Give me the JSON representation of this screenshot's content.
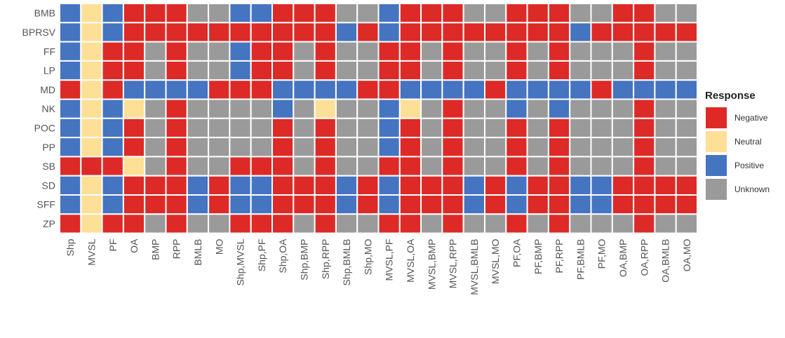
{
  "chart_data": {
    "type": "heatmap",
    "title": "",
    "xlabel": "",
    "ylabel": "",
    "rows": [
      "BMB",
      "BPRSV",
      "FF",
      "LP",
      "MD",
      "NK",
      "POC",
      "PP",
      "SB",
      "SD",
      "SFF",
      "ZP"
    ],
    "columns": [
      "Shp",
      "MVSL",
      "PF",
      "OA",
      "BMP",
      "RPP",
      "BMLB",
      "MO",
      "Shp,MVSL",
      "Shp,PF",
      "Shp,OA",
      "Shp,BMP",
      "Shp,RPP",
      "Shp,BMLB",
      "Shp,MO",
      "MVSL,PF",
      "MVSL,OA",
      "MVSL,BMP",
      "MVSL,RPP",
      "MVSL,BMLB",
      "MVSL,MO",
      "PF,OA",
      "PF,BMP",
      "PF,RPP",
      "PF,BMLB",
      "PF,MO",
      "OA,BMP",
      "OA,RPP",
      "OA,BMLB",
      "OA,MO"
    ],
    "values": [
      [
        "Positive",
        "Neutral",
        "Positive",
        "Negative",
        "Negative",
        "Negative",
        "Unknown",
        "Unknown",
        "Positive",
        "Positive",
        "Negative",
        "Negative",
        "Negative",
        "Unknown",
        "Unknown",
        "Positive",
        "Negative",
        "Negative",
        "Negative",
        "Unknown",
        "Unknown",
        "Negative",
        "Negative",
        "Negative",
        "Unknown",
        "Unknown",
        "Negative",
        "Negative",
        "Unknown",
        "Unknown"
      ],
      [
        "Positive",
        "Neutral",
        "Positive",
        "Negative",
        "Negative",
        "Negative",
        "Negative",
        "Negative",
        "Negative",
        "Negative",
        "Negative",
        "Negative",
        "Negative",
        "Positive",
        "Negative",
        "Positive",
        "Negative",
        "Negative",
        "Negative",
        "Negative",
        "Negative",
        "Negative",
        "Negative",
        "Negative",
        "Positive",
        "Negative",
        "Negative",
        "Negative",
        "Negative",
        "Negative"
      ],
      [
        "Positive",
        "Neutral",
        "Negative",
        "Negative",
        "Unknown",
        "Negative",
        "Unknown",
        "Unknown",
        "Positive",
        "Negative",
        "Negative",
        "Unknown",
        "Negative",
        "Unknown",
        "Unknown",
        "Negative",
        "Negative",
        "Unknown",
        "Negative",
        "Unknown",
        "Unknown",
        "Negative",
        "Unknown",
        "Negative",
        "Unknown",
        "Unknown",
        "Unknown",
        "Negative",
        "Unknown",
        "Unknown"
      ],
      [
        "Positive",
        "Neutral",
        "Negative",
        "Negative",
        "Unknown",
        "Negative",
        "Unknown",
        "Unknown",
        "Positive",
        "Negative",
        "Negative",
        "Unknown",
        "Negative",
        "Unknown",
        "Unknown",
        "Negative",
        "Negative",
        "Unknown",
        "Negative",
        "Unknown",
        "Unknown",
        "Negative",
        "Unknown",
        "Negative",
        "Unknown",
        "Unknown",
        "Unknown",
        "Negative",
        "Unknown",
        "Unknown"
      ],
      [
        "Negative",
        "Neutral",
        "Negative",
        "Positive",
        "Positive",
        "Positive",
        "Positive",
        "Negative",
        "Negative",
        "Negative",
        "Positive",
        "Positive",
        "Positive",
        "Positive",
        "Negative",
        "Negative",
        "Positive",
        "Positive",
        "Positive",
        "Positive",
        "Negative",
        "Positive",
        "Positive",
        "Positive",
        "Positive",
        "Negative",
        "Positive",
        "Positive",
        "Positive",
        "Positive"
      ],
      [
        "Positive",
        "Neutral",
        "Positive",
        "Neutral",
        "Unknown",
        "Negative",
        "Unknown",
        "Unknown",
        "Unknown",
        "Unknown",
        "Positive",
        "Unknown",
        "Neutral",
        "Unknown",
        "Unknown",
        "Positive",
        "Neutral",
        "Unknown",
        "Negative",
        "Unknown",
        "Unknown",
        "Positive",
        "Unknown",
        "Positive",
        "Unknown",
        "Unknown",
        "Unknown",
        "Negative",
        "Unknown",
        "Unknown"
      ],
      [
        "Positive",
        "Neutral",
        "Positive",
        "Negative",
        "Unknown",
        "Negative",
        "Unknown",
        "Unknown",
        "Unknown",
        "Unknown",
        "Negative",
        "Unknown",
        "Negative",
        "Unknown",
        "Unknown",
        "Positive",
        "Negative",
        "Unknown",
        "Negative",
        "Unknown",
        "Unknown",
        "Negative",
        "Unknown",
        "Negative",
        "Unknown",
        "Unknown",
        "Unknown",
        "Negative",
        "Unknown",
        "Unknown"
      ],
      [
        "Positive",
        "Neutral",
        "Positive",
        "Negative",
        "Unknown",
        "Negative",
        "Unknown",
        "Unknown",
        "Unknown",
        "Unknown",
        "Negative",
        "Unknown",
        "Negative",
        "Unknown",
        "Unknown",
        "Positive",
        "Negative",
        "Unknown",
        "Negative",
        "Unknown",
        "Unknown",
        "Negative",
        "Unknown",
        "Negative",
        "Unknown",
        "Unknown",
        "Unknown",
        "Negative",
        "Unknown",
        "Unknown"
      ],
      [
        "Negative",
        "Negative",
        "Negative",
        "Neutral",
        "Unknown",
        "Negative",
        "Unknown",
        "Unknown",
        "Negative",
        "Negative",
        "Negative",
        "Unknown",
        "Negative",
        "Unknown",
        "Unknown",
        "Negative",
        "Negative",
        "Unknown",
        "Negative",
        "Unknown",
        "Unknown",
        "Negative",
        "Unknown",
        "Negative",
        "Unknown",
        "Unknown",
        "Unknown",
        "Negative",
        "Unknown",
        "Unknown"
      ],
      [
        "Positive",
        "Neutral",
        "Positive",
        "Negative",
        "Negative",
        "Negative",
        "Positive",
        "Negative",
        "Positive",
        "Positive",
        "Negative",
        "Negative",
        "Negative",
        "Positive",
        "Negative",
        "Positive",
        "Negative",
        "Negative",
        "Negative",
        "Positive",
        "Negative",
        "Positive",
        "Negative",
        "Negative",
        "Positive",
        "Positive",
        "Negative",
        "Negative",
        "Negative",
        "Negative"
      ],
      [
        "Positive",
        "Neutral",
        "Positive",
        "Negative",
        "Negative",
        "Negative",
        "Positive",
        "Negative",
        "Positive",
        "Positive",
        "Negative",
        "Negative",
        "Negative",
        "Positive",
        "Negative",
        "Positive",
        "Negative",
        "Negative",
        "Negative",
        "Positive",
        "Negative",
        "Positive",
        "Negative",
        "Negative",
        "Positive",
        "Positive",
        "Negative",
        "Negative",
        "Negative",
        "Negative"
      ],
      [
        "Negative",
        "Neutral",
        "Negative",
        "Negative",
        "Unknown",
        "Negative",
        "Unknown",
        "Unknown",
        "Negative",
        "Negative",
        "Negative",
        "Unknown",
        "Negative",
        "Unknown",
        "Unknown",
        "Negative",
        "Negative",
        "Unknown",
        "Negative",
        "Unknown",
        "Unknown",
        "Negative",
        "Unknown",
        "Negative",
        "Unknown",
        "Unknown",
        "Unknown",
        "Negative",
        "Unknown",
        "Unknown"
      ]
    ],
    "legend": {
      "title": "Response",
      "position": "right",
      "items": [
        {
          "label": "Negative",
          "color": "#dd2a27"
        },
        {
          "label": "Neutral",
          "color": "#fedf96"
        },
        {
          "label": "Positive",
          "color": "#4574c0"
        },
        {
          "label": "Unknown",
          "color": "#9a9a9a"
        }
      ]
    },
    "grid": false
  }
}
